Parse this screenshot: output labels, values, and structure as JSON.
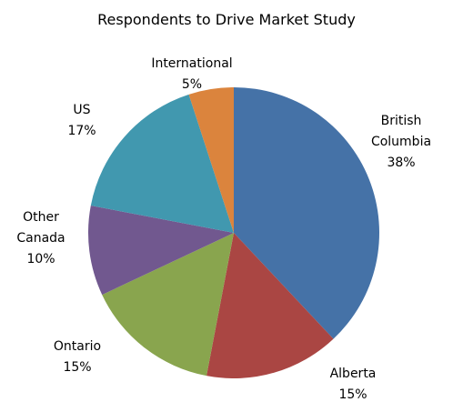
{
  "chart_data": {
    "type": "pie",
    "title": "Respondents to Drive Market Study",
    "categories": [
      "British Columbia",
      "Alberta",
      "Ontario",
      "Other Canada",
      "US",
      "International"
    ],
    "values": [
      38,
      15,
      15,
      10,
      17,
      5
    ],
    "value_labels": [
      "38%",
      "15%",
      "15%",
      "10%",
      "17%",
      "5%"
    ],
    "colors": [
      "#4572a7",
      "#aa4643",
      "#89a54e",
      "#71588f",
      "#4198af",
      "#db843d"
    ]
  }
}
